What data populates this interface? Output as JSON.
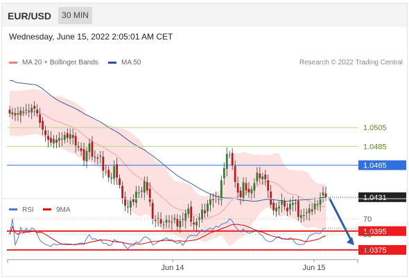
{
  "header": {
    "symbol": "EUR/USD",
    "timeframe": "30 MIN"
  },
  "datetime": "Wednesday, June 15, 2022 2:05:01 AM CET",
  "legend": [
    {
      "label": "MA 20 + Bollinger Bands",
      "color": "#f08080"
    },
    {
      "label": "MA 50",
      "color": "#2f4f8f"
    }
  ],
  "credit": "Research © 2022 Trading Central",
  "colors": {
    "up": "#2e7d32",
    "down": "#b71c1c",
    "band": "#fde0e0",
    "ma20": "#f4a0a0",
    "ma50": "#3a5a9a",
    "resistance": "#b7d88a",
    "pivot": "#2f6fe0",
    "support": "#ee1c1c",
    "price_box": "#222222",
    "arrow": "#2a5fa8",
    "rsi": "#4a78d8",
    "rsi_ma": "#e00000"
  },
  "chart_data": [
    {
      "type": "candlestick",
      "title": "EUR/USD",
      "x_labels": [
        "Jun 14",
        "Jun 15"
      ],
      "ylim": [
        1.035,
        1.06
      ],
      "current_price": "1.0431",
      "levels": [
        {
          "label": "1.0505",
          "value": 1.0505,
          "role": "resistance"
        },
        {
          "label": "1.0485",
          "value": 1.0485,
          "role": "resistance"
        },
        {
          "label": "1.0465",
          "value": 1.0465,
          "role": "pivot"
        },
        {
          "label": "1.0395",
          "value": 1.0395,
          "role": "support"
        },
        {
          "label": "1.0375",
          "value": 1.0375,
          "role": "support"
        }
      ],
      "forecast": {
        "direction": "down",
        "from": 1.0431,
        "to": 1.038
      },
      "closes": [
        1.052,
        1.0521,
        1.0518,
        1.0519,
        1.0523,
        1.0521,
        1.0524,
        1.0522,
        1.0526,
        1.0525,
        1.052,
        1.051,
        1.0503,
        1.0497,
        1.0492,
        1.0489,
        1.0493,
        1.0489,
        1.0494,
        1.0493,
        1.0497,
        1.0494,
        1.0498,
        1.0494,
        1.0486,
        1.0484,
        1.048,
        1.047,
        1.048,
        1.0488,
        1.0474,
        1.0474,
        1.0472,
        1.0475,
        1.0459,
        1.0458,
        1.0452,
        1.0452,
        1.0464,
        1.0452,
        1.0444,
        1.0429,
        1.0422,
        1.0421,
        1.0427,
        1.0426,
        1.0437,
        1.0436,
        1.0437,
        1.0448,
        1.0438,
        1.0426,
        1.0408,
        1.0406,
        1.0409,
        1.0403,
        1.0402,
        1.0407,
        1.0405,
        1.0405,
        1.0409,
        1.04,
        1.0406,
        1.0407,
        1.0414,
        1.0419,
        1.0405,
        1.0402,
        1.0405,
        1.0409,
        1.0418,
        1.0414,
        1.0424,
        1.043,
        1.0428,
        1.0429,
        1.0429,
        1.0449,
        1.0462,
        1.0477,
        1.0476,
        1.0465,
        1.0447,
        1.0436,
        1.0431,
        1.0447,
        1.0438,
        1.0436,
        1.0439,
        1.0446,
        1.0457,
        1.0451,
        1.0453,
        1.045,
        1.0438,
        1.0423,
        1.0417,
        1.042,
        1.0421,
        1.0428,
        1.0421,
        1.0416,
        1.0424,
        1.0425,
        1.0425,
        1.041,
        1.0412,
        1.0412,
        1.0415,
        1.0419,
        1.0416,
        1.0424,
        1.0424,
        1.0431,
        1.0436,
        1.0431
      ]
    },
    {
      "type": "line",
      "title": "RSI",
      "series": [
        {
          "name": "RSI"
        },
        {
          "name": "9MA"
        }
      ],
      "ylim": [
        20,
        80
      ],
      "yticks": [
        "70",
        "50",
        "30"
      ],
      "rsi_last": 58,
      "rsi_ma_last": 48
    }
  ]
}
